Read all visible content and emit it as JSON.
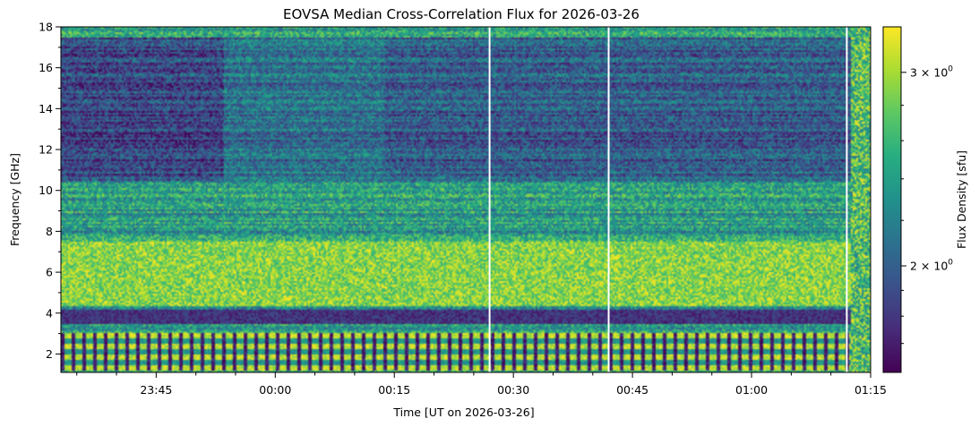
{
  "chart_data": {
    "type": "heatmap",
    "title": "EOVSA Median Cross-Correlation Flux for 2026-03-26",
    "xlabel": "Time [UT on 2026-03-26]",
    "ylabel": "Frequency [GHz]",
    "x_range": [
      "23:33",
      "01:15"
    ],
    "x_ticks": [
      "23:45",
      "00:00",
      "00:15",
      "00:30",
      "00:45",
      "01:00",
      "01:15"
    ],
    "y_range": [
      1.1,
      18.0
    ],
    "y_ticks": [
      2,
      4,
      6,
      8,
      10,
      12,
      14,
      16,
      18
    ],
    "colorbar": {
      "label": "Flux Density [sfu]",
      "scale": "log",
      "colormap": "viridis",
      "range": [
        1.6,
        3.3
      ],
      "ticks": [
        {
          "value": 2,
          "base": "2 × 10",
          "exp": "0"
        },
        {
          "value": 3,
          "base": "3 × 10",
          "exp": "0"
        }
      ]
    },
    "data_gaps_utc": [
      "00:27",
      "00:42",
      "01:12"
    ],
    "features": [
      {
        "freq_ghz": [
          4.3,
          7.5
        ],
        "level": "high"
      },
      {
        "freq_ghz": [
          10.5,
          17.5
        ],
        "level": "low"
      },
      {
        "freq_ghz": [
          1.2,
          3.0
        ],
        "level": "alternating"
      }
    ]
  }
}
